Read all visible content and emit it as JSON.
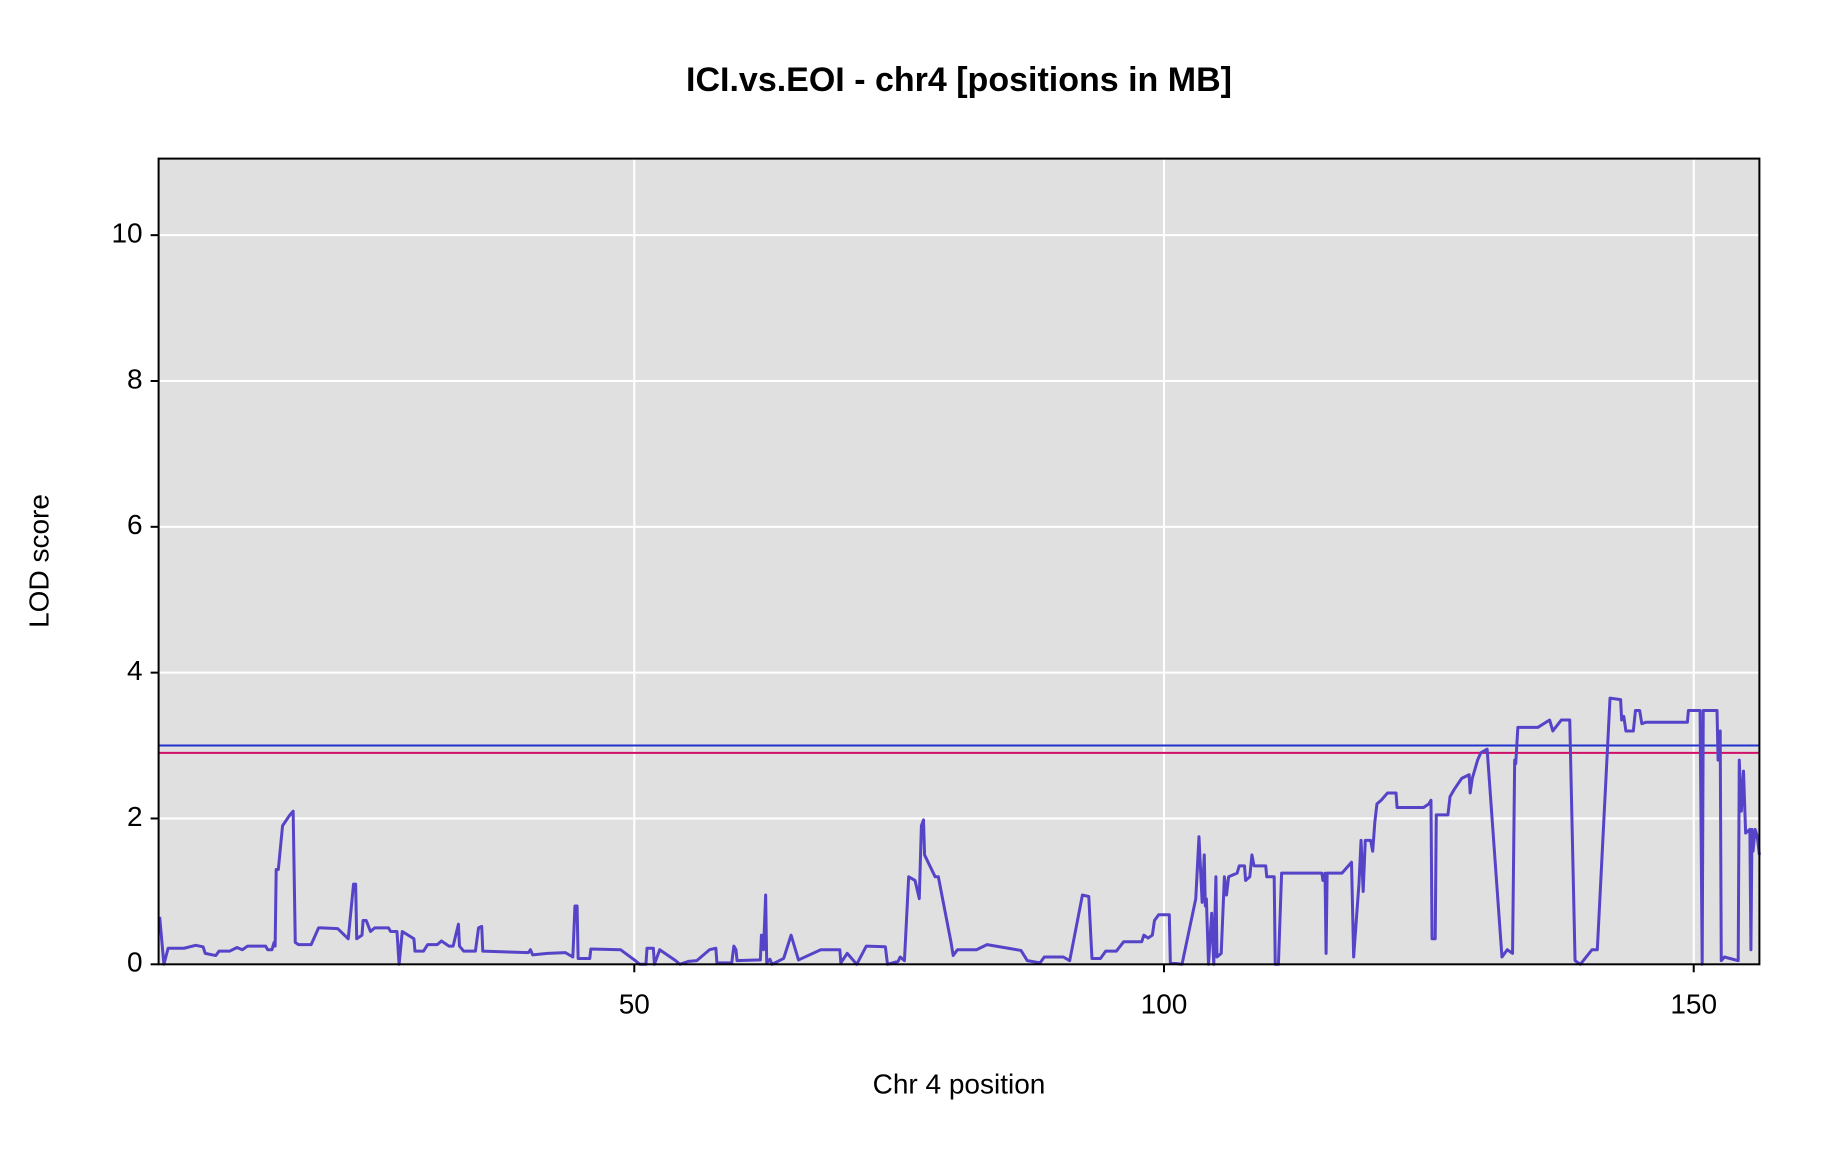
{
  "chart_data": {
    "type": "line",
    "title": "ICI.vs.EOI - chr4 [positions in MB]",
    "x_label": "Chr 4 position",
    "y_label": "LOD score",
    "xlim": [
      5.1,
      156.2
    ],
    "ylim": [
      0,
      11.05
    ],
    "xticks": [
      50,
      100,
      150
    ],
    "yticks": [
      0,
      2,
      4,
      6,
      8,
      10
    ],
    "grid": true,
    "thresholds": [
      {
        "value": 3.0,
        "color": "#2233cc"
      },
      {
        "value": 2.9,
        "color": "#d0106a"
      }
    ],
    "series": [
      {
        "color": "#5544c8",
        "x": [
          5.2,
          5.6,
          6.0,
          7.5,
          8.6,
          9.3,
          9.5,
          10.5,
          10.8,
          11.8,
          12.5,
          13.0,
          13.5,
          15.2,
          15.4,
          15.8,
          16.0,
          16.1,
          16.2,
          16.4,
          16.8,
          17.5,
          17.8,
          18.0,
          18.3,
          19.5,
          20.2,
          20.5,
          22.0,
          23.0,
          23.5,
          23.7,
          23.8,
          24.3,
          24.4,
          24.7,
          25.1,
          25.5,
          26.8,
          27.0,
          27.6,
          27.8,
          28.1,
          29.2,
          29.3,
          30.1,
          30.5,
          31.4,
          31.8,
          32.5,
          32.9,
          33.4,
          33.5,
          33.9,
          35.0,
          35.3,
          35.6,
          35.7,
          40.0,
          40.2,
          40.4,
          41.8,
          43.5,
          44.2,
          44.4,
          44.6,
          44.7,
          45.8,
          45.9,
          48.7,
          50.1,
          50.5,
          51.1,
          51.2,
          51.8,
          51.9,
          52.4,
          53.9,
          54.3,
          55.1,
          55.9,
          57.1,
          57.7,
          57.8,
          59.2,
          59.4,
          59.6,
          59.7,
          61.9,
          62.0,
          62.2,
          62.4,
          62.5,
          62.8,
          63.0,
          64.1,
          64.8,
          65.5,
          67.6,
          69.4,
          69.5,
          70.1,
          71.0,
          71.9,
          73.7,
          73.9,
          74.9,
          75.1,
          75.5,
          75.9,
          76.5,
          76.9,
          77.1,
          77.3,
          77.4,
          78.4,
          78.7,
          79.9,
          80.1,
          80.5,
          82.3,
          83.3,
          85.3,
          86.5,
          87.1,
          88.3,
          88.7,
          90.5,
          91.1,
          92.3,
          92.9,
          93.2,
          94.0,
          94.5,
          95.5,
          96.2,
          97.9,
          98.1,
          98.5,
          98.9,
          99.1,
          99.5,
          100.5,
          100.6,
          101.7,
          103.0,
          103.3,
          103.6,
          103.8,
          103.9,
          104.0,
          104.2,
          104.5,
          104.7,
          104.9,
          105.0,
          105.4,
          105.7,
          105.9,
          106.1,
          106.9,
          107.1,
          107.6,
          107.7,
          108.1,
          108.3,
          108.5,
          109.6,
          109.7,
          110.4,
          110.5,
          110.8,
          111.1,
          114.9,
          115.0,
          115.2,
          115.3,
          115.4,
          116.8,
          117.7,
          117.9,
          118.4,
          118.6,
          118.8,
          119.0,
          119.5,
          119.7,
          119.9,
          120.1,
          120.5,
          121.1,
          121.9,
          122.0,
          124.5,
          125.0,
          125.2,
          125.3,
          125.6,
          125.7,
          126.8,
          127.0,
          127.4,
          128.1,
          128.8,
          128.9,
          129.1,
          129.6,
          129.9,
          130.5,
          131.9,
          132.4,
          132.9,
          133.1,
          133.2,
          133.4,
          135.3,
          136.4,
          136.7,
          137.5,
          138.3,
          138.8,
          139.3,
          140.4,
          140.9,
          142.1,
          143.1,
          143.2,
          143.4,
          143.6,
          144.3,
          144.5,
          144.9,
          145.1,
          145.5,
          149.4,
          149.5,
          150.6,
          150.8,
          150.9,
          152.2,
          152.3,
          152.5,
          152.6,
          152.9,
          154.2,
          154.3,
          154.5,
          154.7,
          154.9,
          155.3,
          155.4,
          155.5,
          155.6,
          155.8,
          156.0,
          156.2
        ],
        "values": [
          0.65,
          0,
          0.22,
          0.22,
          0.26,
          0.24,
          0.15,
          0.12,
          0.18,
          0.18,
          0.23,
          0.2,
          0.25,
          0.25,
          0.2,
          0.2,
          0.3,
          0.25,
          1.3,
          1.3,
          1.9,
          2.05,
          2.1,
          0.3,
          0.27,
          0.27,
          0.5,
          0.5,
          0.49,
          0.35,
          1.1,
          1.1,
          0.35,
          0.4,
          0.6,
          0.6,
          0.45,
          0.5,
          0.5,
          0.45,
          0.45,
          0,
          0.45,
          0.35,
          0.18,
          0.18,
          0.27,
          0.27,
          0.32,
          0.25,
          0.25,
          0.55,
          0.25,
          0.18,
          0.18,
          0.5,
          0.52,
          0.18,
          0.16,
          0.2,
          0.13,
          0.15,
          0.16,
          0.1,
          0.8,
          0.8,
          0.08,
          0.08,
          0.21,
          0.2,
          0.05,
          0,
          0,
          0.22,
          0.22,
          0,
          0.2,
          0.05,
          0,
          0.04,
          0.05,
          0.2,
          0.22,
          0.02,
          0.02,
          0.25,
          0.2,
          0.05,
          0.06,
          0.4,
          0.2,
          0.95,
          0.02,
          0.07,
          0,
          0.08,
          0.4,
          0.06,
          0.2,
          0.2,
          0.02,
          0.15,
          0,
          0.25,
          0.24,
          0,
          0.04,
          0.1,
          0.05,
          1.2,
          1.15,
          0.9,
          1.9,
          1.98,
          1.5,
          1.2,
          1.2,
          0.3,
          0.12,
          0.2,
          0.2,
          0.27,
          0.22,
          0.19,
          0.05,
          0.02,
          0.1,
          0.1,
          0.05,
          0.95,
          0.93,
          0.08,
          0.08,
          0.18,
          0.18,
          0.31,
          0.31,
          0.4,
          0.36,
          0.4,
          0.6,
          0.68,
          0.68,
          0.02,
          0,
          0.9,
          1.75,
          0.85,
          1.5,
          0.8,
          0.9,
          0,
          0.7,
          0,
          1.2,
          0.1,
          0.15,
          1.2,
          0.95,
          1.2,
          1.25,
          1.35,
          1.35,
          1.15,
          1.2,
          1.5,
          1.35,
          1.35,
          1.2,
          1.2,
          0,
          0,
          1.25,
          1.25,
          1.15,
          1.25,
          0.15,
          1.25,
          1.25,
          1.4,
          0.1,
          1.1,
          1.7,
          1.0,
          1.7,
          1.7,
          1.55,
          1.95,
          2.2,
          2.25,
          2.35,
          2.35,
          2.15,
          2.15,
          2.2,
          2.25,
          0.35,
          0.35,
          2.05,
          2.05,
          2.3,
          2.4,
          2.55,
          2.6,
          2.35,
          2.55,
          2.8,
          2.9,
          2.95,
          0.1,
          0.2,
          0.15,
          2.8,
          2.75,
          3.25,
          3.25,
          3.35,
          3.2,
          3.35,
          3.35,
          0.05,
          0,
          0.2,
          0.2,
          3.65,
          3.63,
          3.35,
          3.4,
          3.2,
          3.2,
          3.48,
          3.48,
          3.3,
          3.32,
          3.32,
          3.48,
          3.48,
          0,
          3.48,
          3.48,
          2.8,
          3.2,
          0.05,
          0.1,
          0.05,
          2.8,
          2.1,
          2.65,
          1.8,
          1.85,
          0.2,
          1.85,
          1.55,
          1.85,
          1.75,
          1.5
        ]
      }
    ]
  }
}
